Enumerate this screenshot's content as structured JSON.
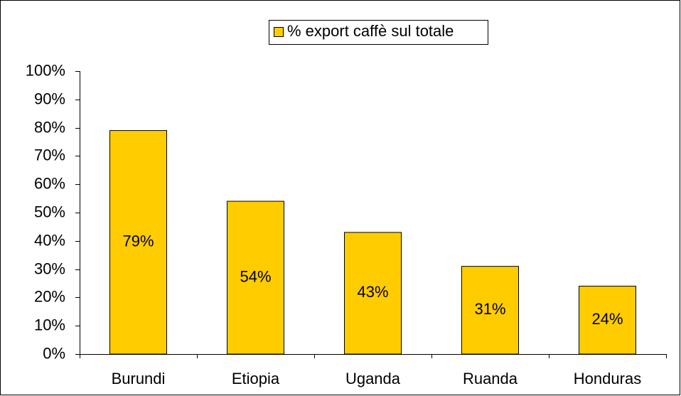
{
  "chart_data": {
    "type": "bar",
    "legend_label": "% export caffè sul totale",
    "categories": [
      "Burundi",
      "Etiopia",
      "Uganda",
      "Ruanda",
      "Honduras"
    ],
    "values": [
      79,
      54,
      43,
      31,
      24
    ],
    "value_labels": [
      "79%",
      "54%",
      "43%",
      "31%",
      "24%"
    ],
    "color": "#ffcc00",
    "ylim": [
      0,
      100
    ],
    "yticks": [
      {
        "value": 0,
        "label": "0%"
      },
      {
        "value": 10,
        "label": "10%"
      },
      {
        "value": 20,
        "label": "20%"
      },
      {
        "value": 30,
        "label": "30%"
      },
      {
        "value": 40,
        "label": "40%"
      },
      {
        "value": 50,
        "label": "50%"
      },
      {
        "value": 60,
        "label": "60%"
      },
      {
        "value": 70,
        "label": "70%"
      },
      {
        "value": 80,
        "label": "80%"
      },
      {
        "value": 90,
        "label": "90%"
      },
      {
        "value": 100,
        "label": "100%"
      }
    ],
    "grid": false,
    "legend": "top"
  }
}
